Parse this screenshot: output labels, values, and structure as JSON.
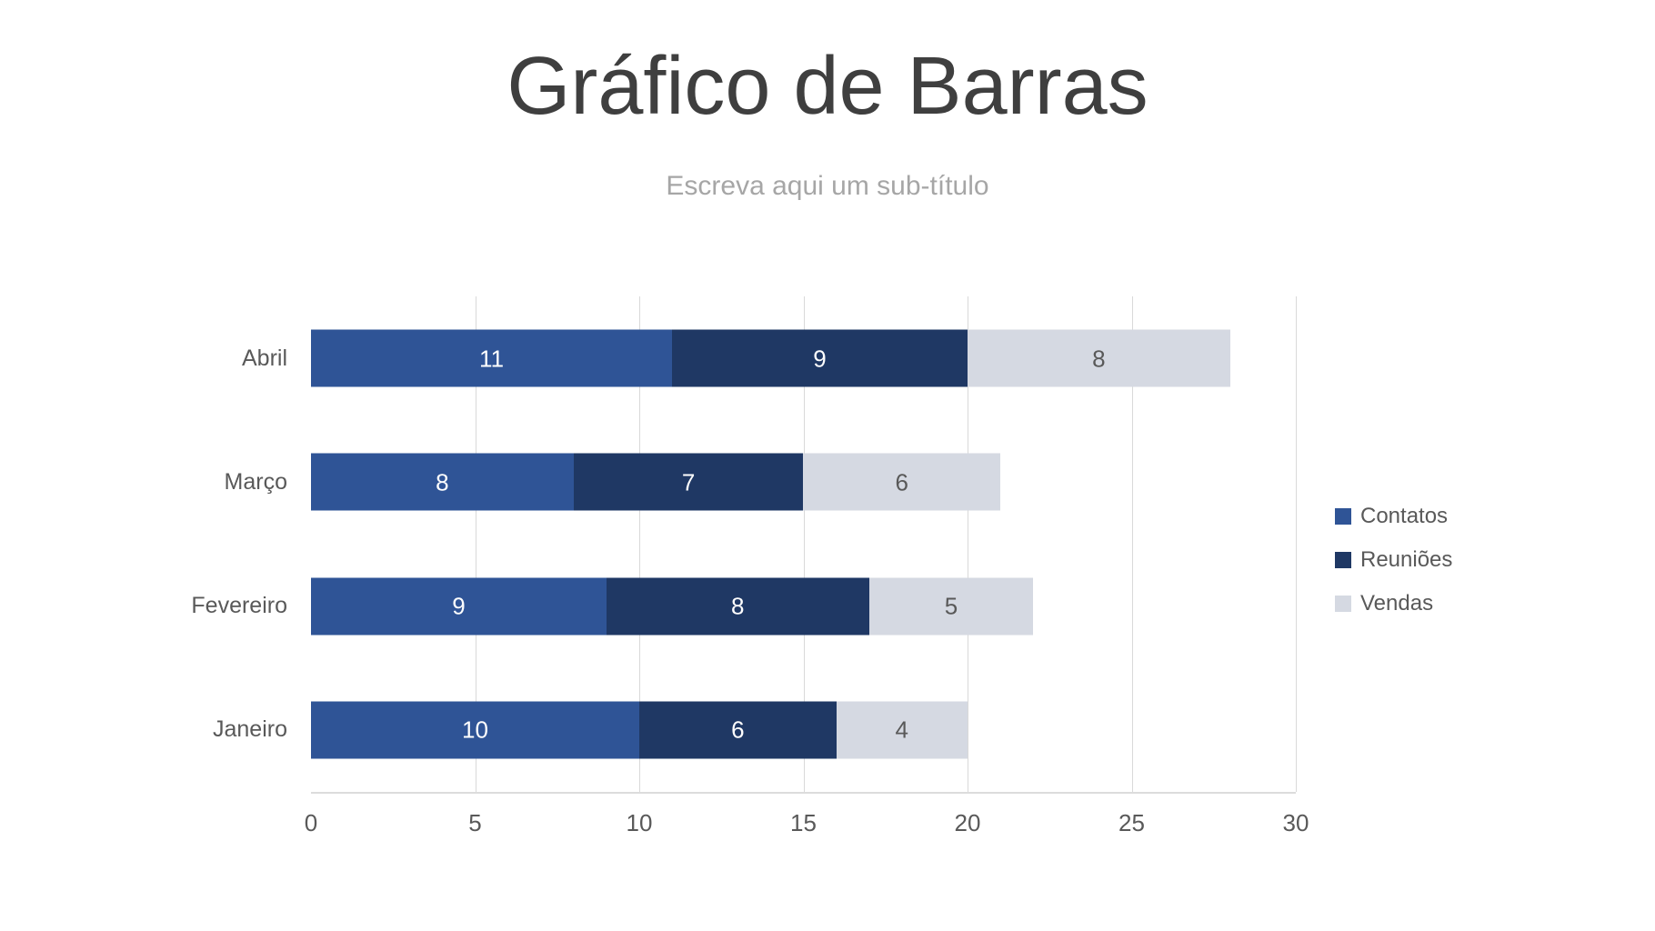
{
  "title": "Gráfico de Barras",
  "subtitle": "Escreva aqui um sub-título",
  "chart_data": {
    "type": "bar",
    "orientation": "horizontal",
    "stacked": true,
    "title": "Gráfico de Barras",
    "subtitle": "Escreva aqui um sub-título",
    "categories": [
      "Abril",
      "Março",
      "Fevereiro",
      "Janeiro"
    ],
    "series": [
      {
        "name": "Contatos",
        "color": "#2F5496",
        "label_color": "#FFFFFF",
        "values": [
          11,
          8,
          9,
          10
        ]
      },
      {
        "name": "Reuniões",
        "color": "#1F3864",
        "label_color": "#FFFFFF",
        "values": [
          9,
          7,
          8,
          6
        ]
      },
      {
        "name": "Vendas",
        "color": "#D5D9E2",
        "label_color": "#595959",
        "values": [
          8,
          6,
          5,
          4
        ]
      }
    ],
    "totals": {
      "Abril": 28,
      "Março": 21,
      "Fevereiro": 22,
      "Janeiro": 20
    },
    "xlim": [
      0,
      30
    ],
    "xticks": [
      0,
      5,
      10,
      15,
      20,
      25,
      30
    ],
    "gridlines": true,
    "data_labels": true,
    "legend_position": "right"
  },
  "colors": {
    "background": "#FFFFFF",
    "title_text": "#3F3F3F",
    "subtitle_text": "#A6A6A6",
    "axis_text": "#595959",
    "gridline": "#D9D9D9"
  }
}
